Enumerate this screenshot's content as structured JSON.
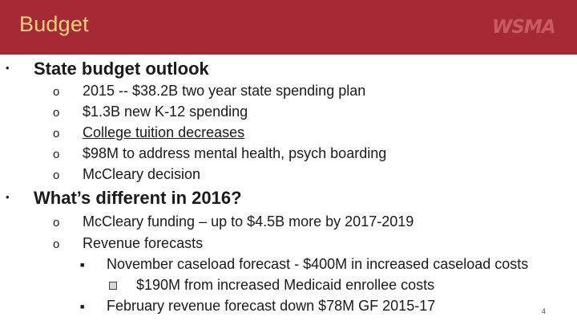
{
  "header": {
    "title": "Budget",
    "logo_text": "WSMA"
  },
  "sections": [
    {
      "heading": "State budget outlook",
      "items": [
        "2015 -- $38.2B two year state spending plan",
        "$1.3B new K-12 spending",
        "College tuition decreases",
        "$98M to address mental health, psych boarding",
        "McCleary decision"
      ]
    },
    {
      "heading": "What’s different in 2016?",
      "items": [
        "McCleary funding – up to $4.5B more by 2017-2019",
        "Revenue forecasts"
      ],
      "subitems": [
        "November caseload forecast - $400M in increased caseload costs",
        "February revenue forecast down $78M GF 2015-17"
      ],
      "subsubitems": [
        "$190M from increased Medicaid enrollee costs"
      ]
    }
  ],
  "bullets": {
    "level1": "•",
    "level2": "o",
    "level3": "■"
  },
  "page_number": "4",
  "colors": {
    "header_bg": "#a52a36",
    "title_text": "#f3d27a"
  }
}
